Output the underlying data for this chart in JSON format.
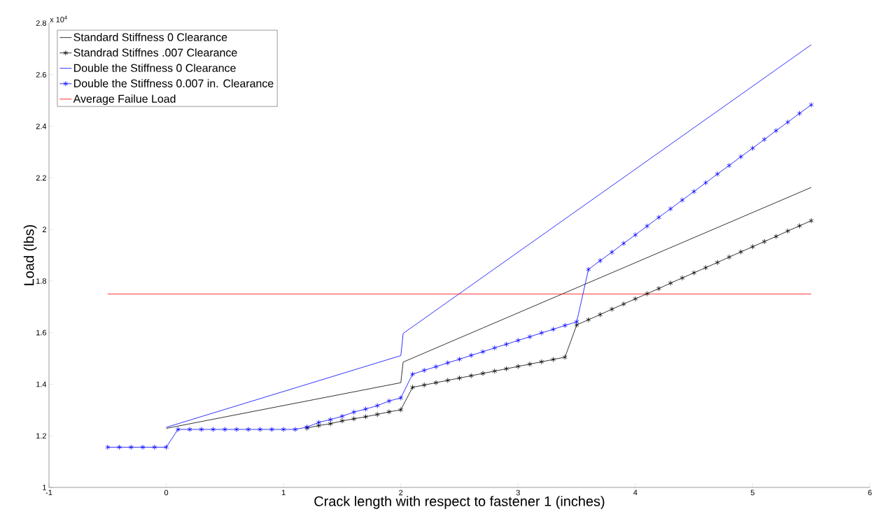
{
  "chart_data": {
    "type": "line",
    "xlabel": "Crack length with respect to fastener 1 (inches)",
    "ylabel": "Load (lbs)",
    "annotations": [
      "x 10$^{4}$"
    ],
    "xlim": [
      -1,
      6
    ],
    "xticks": [
      -1,
      0,
      1,
      2,
      3,
      4,
      5,
      6
    ],
    "ylim": [
      1,
      2.8
    ],
    "yticks": [
      1,
      1.2,
      1.4,
      1.6,
      1.8,
      2,
      2.2,
      2.4,
      2.6,
      2.8
    ],
    "legend": "top left",
    "series": [
      {
        "name": "Standard Stiffness 0 Clearance",
        "color": "#000000",
        "marker": "none",
        "x": [
          0,
          2,
          2.02,
          5.5
        ],
        "values": [
          1.229,
          1.406,
          1.486,
          2.163
        ]
      },
      {
        "name": "Standrad Stiffnes .007 Clearance",
        "color": "#000000",
        "marker": "cross",
        "x": [
          1.2,
          1.3,
          1.4,
          1.5,
          1.6,
          1.7,
          1.8,
          1.9,
          2.0,
          2.1,
          2.2,
          2.3,
          2.4,
          2.5,
          2.6,
          2.7,
          2.8,
          2.9,
          3.0,
          3.1,
          3.2,
          3.3,
          3.4,
          3.5,
          3.6,
          3.7,
          3.8,
          3.9,
          4.0,
          4.1,
          4.2,
          4.3,
          4.4,
          4.5,
          4.6,
          4.7,
          4.8,
          4.9,
          5.0,
          5.1,
          5.2,
          5.3,
          5.4,
          5.5
        ],
        "values": [
          1.23,
          1.24,
          1.247,
          1.258,
          1.266,
          1.274,
          1.283,
          1.293,
          1.301,
          1.388,
          1.397,
          1.406,
          1.415,
          1.424,
          1.433,
          1.442,
          1.451,
          1.46,
          1.469,
          1.478,
          1.487,
          1.496,
          1.505,
          1.63,
          1.65,
          1.67,
          1.691,
          1.711,
          1.731,
          1.751,
          1.771,
          1.792,
          1.812,
          1.832,
          1.852,
          1.872,
          1.893,
          1.913,
          1.933,
          1.953,
          1.973,
          1.994,
          2.014,
          2.034
        ]
      },
      {
        "name": "Double the Stiffness 0 Clearance",
        "color": "#0000ff",
        "marker": "none",
        "x": [
          0,
          2,
          2.02,
          5.5
        ],
        "values": [
          1.233,
          1.511,
          1.597,
          2.716
        ]
      },
      {
        "name": "Double the Stiffness 0.007 in. Clearance",
        "color": "#0000ff",
        "marker": "cross",
        "x": [
          -0.5,
          -0.4,
          -0.3,
          -0.2,
          -0.1,
          0,
          0.1,
          0.2,
          0.3,
          0.4,
          0.5,
          0.6,
          0.7,
          0.8,
          0.9,
          1.0,
          1.1,
          1.2,
          1.3,
          1.4,
          1.5,
          1.6,
          1.7,
          1.8,
          1.9,
          2.0,
          2.1,
          2.2,
          2.3,
          2.4,
          2.5,
          2.6,
          2.7,
          2.8,
          2.9,
          3.0,
          3.1,
          3.2,
          3.3,
          3.4,
          3.5,
          3.6,
          3.7,
          3.8,
          3.9,
          4.0,
          4.1,
          4.2,
          4.3,
          4.4,
          4.5,
          4.6,
          4.7,
          4.8,
          4.9,
          5.0,
          5.1,
          5.2,
          5.3,
          5.4,
          5.5
        ],
        "values": [
          1.156,
          1.156,
          1.156,
          1.156,
          1.156,
          1.156,
          1.225,
          1.225,
          1.225,
          1.225,
          1.225,
          1.225,
          1.225,
          1.225,
          1.225,
          1.225,
          1.225,
          1.234,
          1.252,
          1.263,
          1.276,
          1.292,
          1.304,
          1.317,
          1.335,
          1.347,
          1.439,
          1.454,
          1.468,
          1.483,
          1.497,
          1.512,
          1.526,
          1.541,
          1.555,
          1.57,
          1.584,
          1.599,
          1.613,
          1.628,
          1.642,
          1.845,
          1.879,
          1.912,
          1.946,
          1.979,
          2.013,
          2.047,
          2.08,
          2.114,
          2.147,
          2.181,
          2.215,
          2.248,
          2.282,
          2.315,
          2.349,
          2.383,
          2.416,
          2.45,
          2.483
        ]
      },
      {
        "name": "Average Failue Load",
        "color": "#ff0000",
        "marker": "none",
        "x": [
          -0.5,
          5.5
        ],
        "values": [
          1.75,
          1.75
        ]
      }
    ]
  }
}
